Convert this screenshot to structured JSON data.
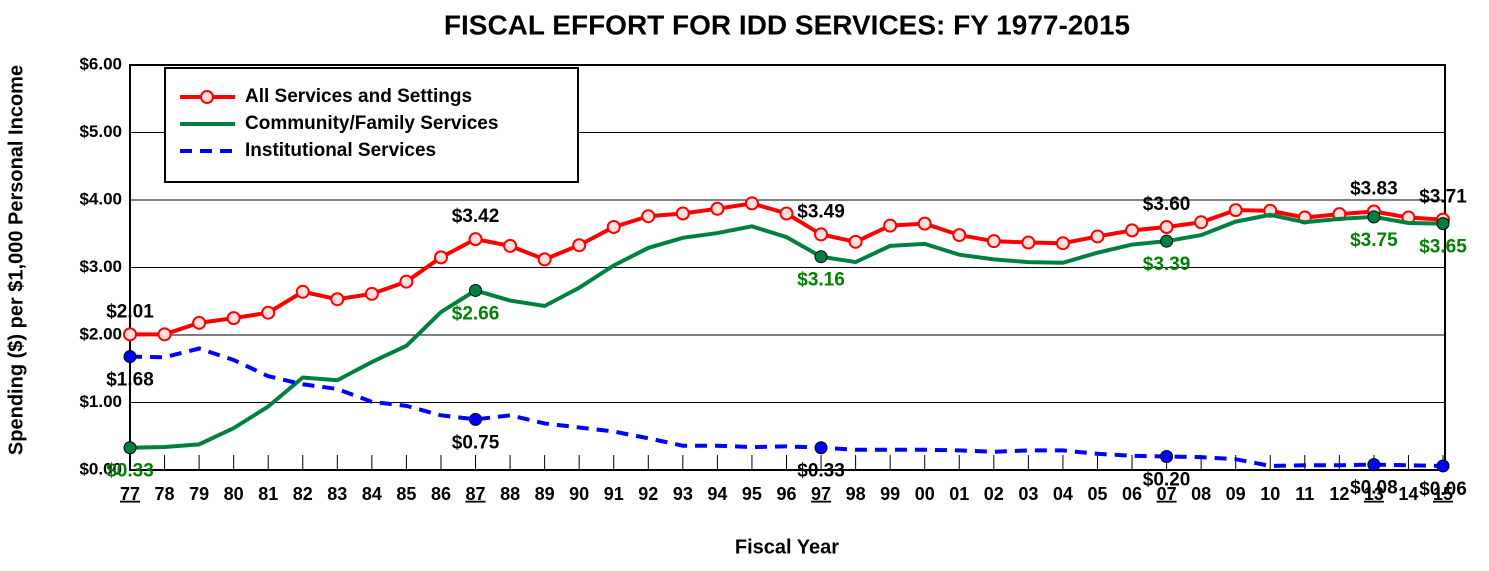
{
  "chart_data": {
    "type": "line",
    "title": "FISCAL EFFORT FOR IDD SERVICES: FY 1977-2015",
    "y_label": "Spending ($) per $1,000 Personal Income",
    "x_label": "Fiscal Year",
    "categories": [
      "77",
      "78",
      "79",
      "80",
      "81",
      "82",
      "83",
      "84",
      "85",
      "86",
      "87",
      "88",
      "89",
      "90",
      "91",
      "92",
      "93",
      "94",
      "95",
      "96",
      "97",
      "98",
      "99",
      "00",
      "01",
      "02",
      "03",
      "04",
      "05",
      "06",
      "07",
      "08",
      "09",
      "10",
      "11",
      "12",
      "13",
      "14",
      "15"
    ],
    "ylim": [
      0,
      6
    ],
    "yticks": [
      {
        "value": 0,
        "label": "$0.00"
      },
      {
        "value": 1,
        "label": "$1.00"
      },
      {
        "value": 2,
        "label": "$2.00"
      },
      {
        "value": 3,
        "label": "$3.00"
      },
      {
        "value": 4,
        "label": "$4.00"
      },
      {
        "value": 5,
        "label": "$5.00"
      },
      {
        "value": 6,
        "label": "$6.00"
      }
    ],
    "grid": true,
    "legend": "top-left",
    "series": [
      {
        "name": "All Services and Settings",
        "color": "#ff0000",
        "line_style": "solid",
        "markers": true,
        "label_color": "#000000",
        "label_position": "above",
        "values": [
          2.01,
          2.01,
          2.18,
          2.25,
          2.33,
          2.64,
          2.53,
          2.61,
          2.79,
          3.15,
          3.42,
          3.32,
          3.12,
          3.33,
          3.6,
          3.76,
          3.8,
          3.87,
          3.95,
          3.8,
          3.49,
          3.38,
          3.62,
          3.65,
          3.48,
          3.39,
          3.37,
          3.36,
          3.46,
          3.55,
          3.6,
          3.67,
          3.85,
          3.84,
          3.74,
          3.79,
          3.83,
          3.74,
          3.71
        ],
        "value_labels": [
          "$2.01",
          null,
          null,
          null,
          null,
          null,
          null,
          null,
          null,
          null,
          "$3.42",
          null,
          null,
          null,
          null,
          null,
          null,
          null,
          null,
          null,
          "$3.49",
          null,
          null,
          null,
          null,
          null,
          null,
          null,
          null,
          null,
          "$3.60",
          null,
          null,
          null,
          null,
          null,
          "$3.83",
          null,
          "$3.71"
        ]
      },
      {
        "name": "Community/Family Services",
        "color": "#008040",
        "line_style": "solid",
        "markers": false,
        "label_color": "#008000",
        "label_position": "below",
        "values": [
          0.33,
          0.34,
          0.38,
          0.62,
          0.94,
          1.37,
          1.33,
          1.6,
          1.84,
          2.34,
          2.66,
          2.51,
          2.43,
          2.7,
          3.03,
          3.29,
          3.44,
          3.51,
          3.61,
          3.45,
          3.16,
          3.08,
          3.32,
          3.35,
          3.19,
          3.12,
          3.08,
          3.07,
          3.22,
          3.34,
          3.39,
          3.48,
          3.68,
          3.78,
          3.67,
          3.72,
          3.75,
          3.66,
          3.65
        ],
        "value_labels": [
          "$0.33",
          null,
          null,
          null,
          null,
          null,
          null,
          null,
          null,
          null,
          "$2.66",
          null,
          null,
          null,
          null,
          null,
          null,
          null,
          null,
          null,
          "$3.16",
          null,
          null,
          null,
          null,
          null,
          null,
          null,
          null,
          null,
          "$3.39",
          null,
          null,
          null,
          null,
          null,
          "$3.75",
          null,
          "$3.65"
        ]
      },
      {
        "name": "Institutional Services",
        "color": "#0000ff",
        "line_style": "dashed",
        "markers": false,
        "label_color": "#000000",
        "label_position": "below",
        "values": [
          1.68,
          1.67,
          1.8,
          1.63,
          1.39,
          1.27,
          1.2,
          1.01,
          0.95,
          0.81,
          0.75,
          0.81,
          0.69,
          0.63,
          0.57,
          0.47,
          0.36,
          0.36,
          0.34,
          0.35,
          0.33,
          0.3,
          0.3,
          0.3,
          0.29,
          0.27,
          0.29,
          0.29,
          0.24,
          0.21,
          0.2,
          0.19,
          0.16,
          0.06,
          0.07,
          0.07,
          0.08,
          0.07,
          0.06
        ],
        "value_labels": [
          "$1.68",
          null,
          null,
          null,
          null,
          null,
          null,
          null,
          null,
          null,
          "$0.75",
          null,
          null,
          null,
          null,
          null,
          null,
          null,
          null,
          null,
          "$0.33",
          null,
          null,
          null,
          null,
          null,
          null,
          null,
          null,
          null,
          "$0.20",
          null,
          null,
          null,
          null,
          null,
          "$0.08",
          null,
          "$0.06"
        ]
      }
    ]
  }
}
